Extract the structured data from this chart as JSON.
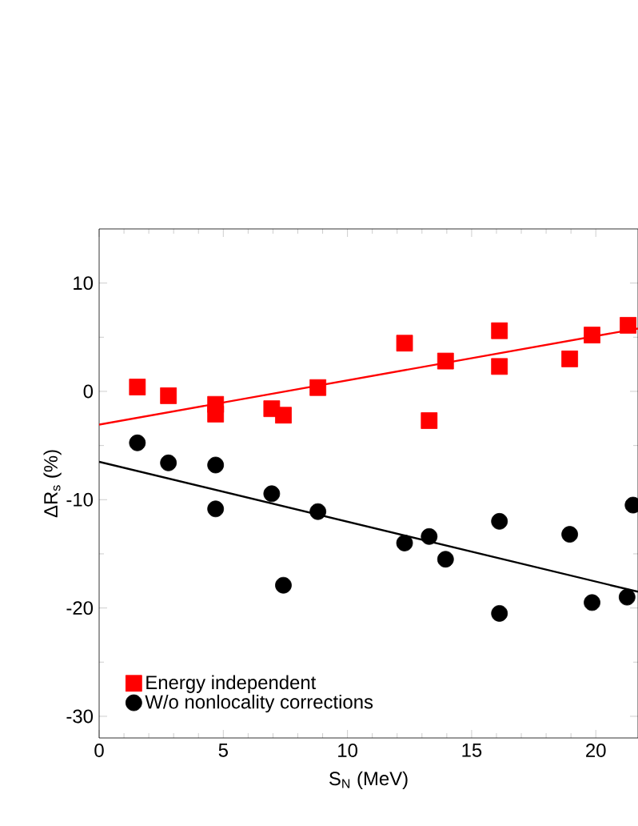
{
  "chart_data": {
    "type": "scatter",
    "xlabel": "S$_{N}$ (MeV)",
    "ylabel": "ΔR$_{s}$ (%)",
    "xlim": [
      0,
      21.7
    ],
    "ylim": [
      -32,
      15
    ],
    "xticks": [
      0,
      5,
      10,
      15,
      20
    ],
    "yticks": [
      -30,
      -20,
      -10,
      0,
      10
    ],
    "legend": "bottom left",
    "grid": false,
    "series": [
      {
        "name": "Energy independent",
        "color": "#ff0000",
        "marker": "square",
        "x": [
          1.54,
          2.79,
          4.69,
          4.69,
          6.95,
          7.42,
          8.81,
          12.3,
          13.29,
          13.95,
          16.12,
          16.12,
          18.95,
          19.85,
          21.3
        ],
        "values": [
          0.4,
          -0.4,
          -1.2,
          -2.1,
          -1.6,
          -2.2,
          0.35,
          4.45,
          -2.7,
          2.8,
          5.6,
          2.3,
          3.0,
          5.2,
          6.1
        ]
      },
      {
        "name": "W/o nonlocality corrections",
        "color": "#000000",
        "marker": "circle",
        "x": [
          1.54,
          2.79,
          4.69,
          4.69,
          6.95,
          8.81,
          7.42,
          12.3,
          13.29,
          13.95,
          16.12,
          16.12,
          18.95,
          19.85,
          21.26,
          21.5
        ],
        "values": [
          -4.75,
          -6.6,
          -6.8,
          -10.85,
          -9.45,
          -11.1,
          -17.9,
          -14.0,
          -13.4,
          -15.5,
          -12.0,
          -20.5,
          -13.2,
          -19.5,
          -19.0,
          -10.5
        ]
      },
      {
        "type": "line",
        "color": "#ff0000",
        "x": [
          0,
          21.7
        ],
        "values": [
          -3.07,
          5.8
        ]
      },
      {
        "type": "line",
        "color": "#000000",
        "x": [
          0,
          21.7
        ],
        "values": [
          -6.5,
          -18.5
        ]
      }
    ]
  }
}
